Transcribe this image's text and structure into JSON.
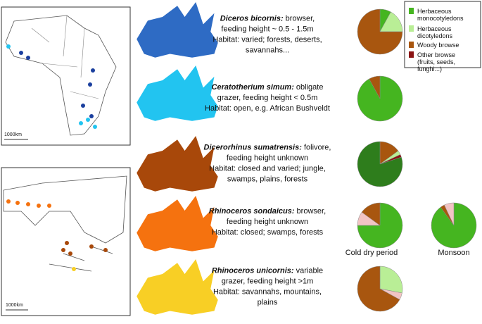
{
  "legend": [
    {
      "label": "Herbaceous monocotyledons",
      "color": "#45b520"
    },
    {
      "label": "Herbaceous dicotyledons",
      "color": "#b9ee96"
    },
    {
      "label": "Woody browse",
      "color": "#a8560f"
    },
    {
      "label": "Other browse (fruits, seeds, funghi...)",
      "color": "#8b1414"
    }
  ],
  "map_scales": [
    "1000km",
    "1000km"
  ],
  "species": [
    {
      "name": "Diceros bicornis:",
      "lines": [
        " browser,",
        "feeding height ~ 0.5 - 1.5m",
        "Habitat: varied; forests, deserts,",
        "savannahs..."
      ],
      "color": "#2e6bc4",
      "pies": [
        {
          "values": [
            8,
            17,
            75
          ],
          "colors": [
            "#45b520",
            "#b9ee96",
            "#a8560f"
          ]
        }
      ]
    },
    {
      "name": "Ceratotherium simum:",
      "lines": [
        " obligate",
        "grazer, feeding height < 0.5m",
        "Habitat: open, e.g. African Bushveldt"
      ],
      "color": "#22c4f0",
      "pies": [
        {
          "values": [
            92,
            8
          ],
          "colors": [
            "#45b520",
            "#a8560f"
          ]
        }
      ]
    },
    {
      "name": "Dicerorhinus sumatrensis:",
      "lines": [
        " folivore,",
        "feeding height unknown",
        "Habitat: closed and varied; jungle,",
        "swamps, plains, forests"
      ],
      "color": "#a8480a",
      "pies": [
        {
          "values": [
            15,
            3,
            2,
            80
          ],
          "colors": [
            "#a8560f",
            "#b9ee96",
            "#8b1414",
            "#2e7d1c"
          ]
        }
      ]
    },
    {
      "name": "Rhinoceros sondaicus:",
      "lines": [
        " browser,",
        "feeding height unknown",
        "Habitat: closed; swamps, forests"
      ],
      "color": "#f5720f",
      "pies": [
        {
          "label": "Cold dry period",
          "values": [
            75,
            10,
            15
          ],
          "colors": [
            "#45b520",
            "#f2c4c4",
            "#a8560f"
          ]
        },
        {
          "label": "Monsoon",
          "values": [
            90,
            3,
            7
          ],
          "colors": [
            "#45b520",
            "#a8560f",
            "#f2c4c4"
          ]
        }
      ]
    },
    {
      "name": "Rhinoceros unicornis:",
      "lines": [
        " variable",
        "grazer, feeding height >1m",
        "Habitat: savannahs, mountains,",
        "plains"
      ],
      "color": "#f8cf25",
      "pies": [
        {
          "values": [
            28,
            5,
            67
          ],
          "colors": [
            "#b9ee96",
            "#f2c4c4",
            "#a8560f"
          ]
        }
      ]
    }
  ]
}
